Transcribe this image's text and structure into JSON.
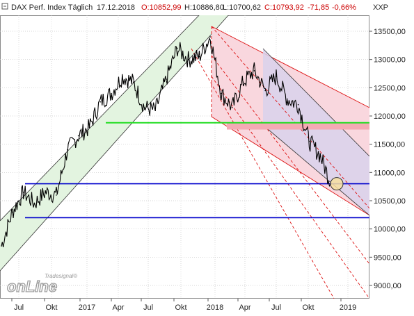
{
  "header": {
    "instrument": "DAX Perf. Index Täglich",
    "date": "17.12.2018",
    "open": "O:10852,99",
    "high": "H:10886,80",
    "low": "L:10700,62",
    "close": "C:10793,92",
    "change": "-71,85",
    "change_pct": "-0,66%",
    "unit": "XXP"
  },
  "watermark": {
    "brand_top": "Tradesignal®",
    "brand_main": "onLine"
  },
  "colors": {
    "price": "#000000",
    "uptrend_fill": "#e3f4e0",
    "downtrend_fill": "#f9d7de",
    "inner_channel_fill": "#d9d2ec",
    "resistance_line": "#22dd22",
    "support_lines": "#0000cc",
    "resistance_zone": "#f5aab4",
    "trend_red": "#dd1111"
  },
  "chart_data": {
    "type": "line",
    "title": "DAX Perf. Index Täglich",
    "y_axis": {
      "min": 8800,
      "max": 13800,
      "position": "right",
      "ticks": [
        "13500,00",
        "13000,00",
        "12500,00",
        "12000,00",
        "11500,00",
        "11000,00",
        "10500,00",
        "10000,00",
        "9500,00",
        "9000,00"
      ],
      "tick_values": [
        13500,
        13000,
        12500,
        12000,
        11500,
        11000,
        10500,
        10000,
        9500,
        9000
      ]
    },
    "x_axis": {
      "ticks": [
        "Jul",
        "Okt",
        "2017",
        "Apr",
        "Jul",
        "Okt",
        "2018",
        "Apr",
        "Jul",
        "Okt",
        "2019"
      ]
    },
    "x_dates": [
      "2016-06",
      "2016-07",
      "2016-08",
      "2016-09",
      "2016-10",
      "2016-11",
      "2016-12",
      "2017-01",
      "2017-02",
      "2017-03",
      "2017-04",
      "2017-05",
      "2017-06",
      "2017-07",
      "2017-08",
      "2017-09",
      "2017-10",
      "2017-11",
      "2017-12",
      "2018-01",
      "2018-02",
      "2018-03",
      "2018-04",
      "2018-05",
      "2018-06",
      "2018-07",
      "2018-08",
      "2018-09",
      "2018-10",
      "2018-11",
      "2018-12"
    ],
    "series": [
      {
        "values": [
          9700,
          10300,
          10650,
          10450,
          10650,
          10600,
          11400,
          11650,
          11800,
          12250,
          12400,
          12700,
          12600,
          12150,
          12100,
          12650,
          13200,
          13000,
          13050,
          13400,
          12400,
          12150,
          12600,
          12800,
          12450,
          12700,
          12300,
          12200,
          11550,
          11300,
          10800
        ]
      }
    ],
    "horizontal_levels": [
      {
        "value": 11880,
        "color": "green",
        "role": "resistance"
      },
      {
        "value": 10800,
        "color": "blue",
        "role": "support"
      },
      {
        "value": 10200,
        "color": "blue",
        "role": "support"
      }
    ],
    "zones": [
      {
        "from": 11760,
        "to": 11880,
        "color": "red"
      }
    ],
    "highlight_marker": {
      "x": "2018-12-17",
      "y": 10800
    },
    "grid": true
  }
}
